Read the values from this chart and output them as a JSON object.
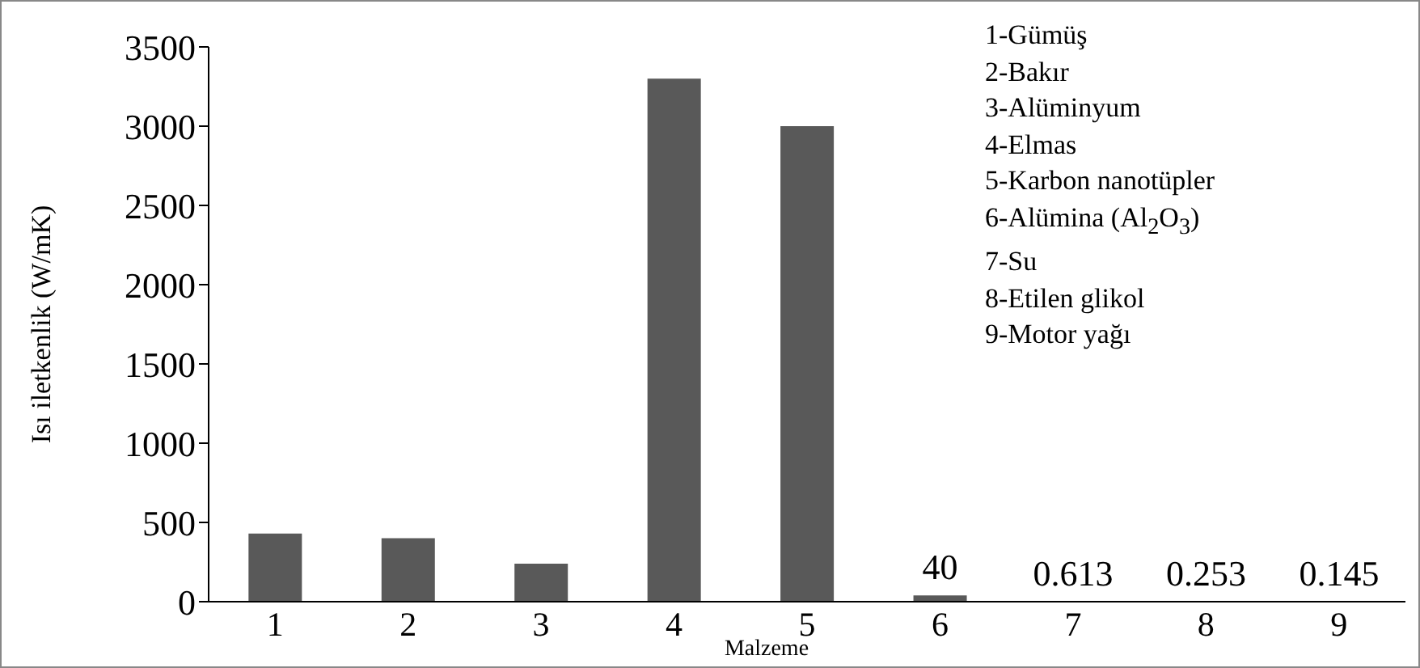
{
  "chart_data": {
    "type": "bar",
    "xlabel": "Malzeme",
    "ylabel": "Isı iletkenlik (W/mK)",
    "categories": [
      "1",
      "2",
      "3",
      "4",
      "5",
      "6",
      "7",
      "8",
      "9"
    ],
    "values": [
      430,
      400,
      240,
      3300,
      3000,
      40,
      0.613,
      0.253,
      0.145
    ],
    "value_labels": [
      null,
      null,
      null,
      null,
      null,
      "40",
      "0.613",
      "0.253",
      "0.145"
    ],
    "color": "#595959",
    "ylim": [
      0,
      3500
    ],
    "yticks": [
      0,
      500,
      1000,
      1500,
      2000,
      2500,
      3000,
      3500
    ],
    "grid": false,
    "legend": false,
    "annotations": [
      "1-Gümüş",
      "2-Bakır",
      "3-Alüminyum",
      "4-Elmas",
      "5-Karbon nanotüpler",
      "6-Alümina (Al$_{2}$O$_{3}$)",
      "7-Su",
      "8-Etilen glikol",
      "9-Motor yağı"
    ]
  }
}
